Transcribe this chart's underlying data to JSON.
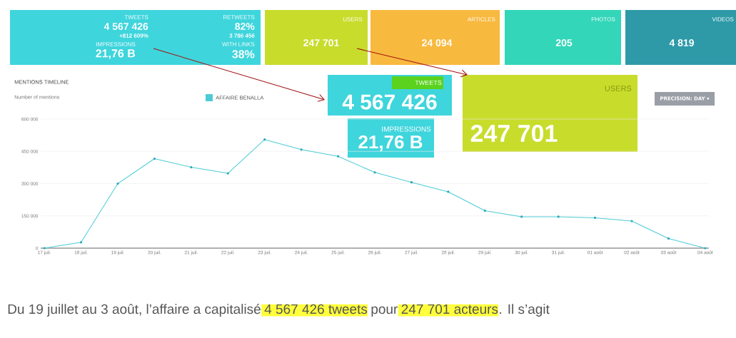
{
  "chart_data": {
    "type": "line",
    "title": "MENTIONS TIMELINE",
    "ylabel": "Number of mentions",
    "categories": [
      "17 juil.",
      "18 juil.",
      "19 juil.",
      "20 juil.",
      "21 juil.",
      "22 juil.",
      "23 juil.",
      "24 juil.",
      "25 juil.",
      "26 juil.",
      "27 juil.",
      "28 juil.",
      "29 juil.",
      "30 juil.",
      "31 juil.",
      "01 août",
      "02 août",
      "03 août",
      "04 août"
    ],
    "series": [
      {
        "name": "AFFAIRE BENALLA",
        "color": "#4ccbd6",
        "values": [
          0,
          27000,
          300000,
          416000,
          376000,
          348000,
          505000,
          458000,
          427000,
          352000,
          306000,
          262000,
          174000,
          146000,
          146000,
          141000,
          126000,
          45000,
          0
        ]
      }
    ],
    "ylim": [
      0,
      600000
    ],
    "yticks": [
      {
        "value": 0,
        "label": "0"
      },
      {
        "value": 150000,
        "label": "150 000"
      },
      {
        "value": 300000,
        "label": "300 000"
      },
      {
        "value": 450000,
        "label": "450 000"
      },
      {
        "value": 600000,
        "label": "600 000"
      }
    ],
    "grid": "y",
    "legend": "top",
    "marker": "circle",
    "annotations": [
      "TWEETS",
      "4 567 426",
      "+812 609%",
      "IMPRESSIONS",
      "21,76 B",
      "RETWEETS",
      "82%",
      "3 786 456",
      "WITH LINKS",
      "38%",
      "USERS",
      "247 701",
      "ARTICLES",
      "24 094",
      "PHOTOS",
      "205",
      "VIDEOS",
      "4 819",
      "PRECISION: DAY ▾",
      "TWEETS",
      "4 567 426",
      "IMPRESSIONS",
      "21,76 B",
      "USERS",
      "247 701",
      "Du 19 juillet au 3 août, l’affaire a capitalisé",
      "4 567 426 tweets",
      "pour",
      "247 701 acteurs",
      ". Il s’agit"
    ]
  }
}
